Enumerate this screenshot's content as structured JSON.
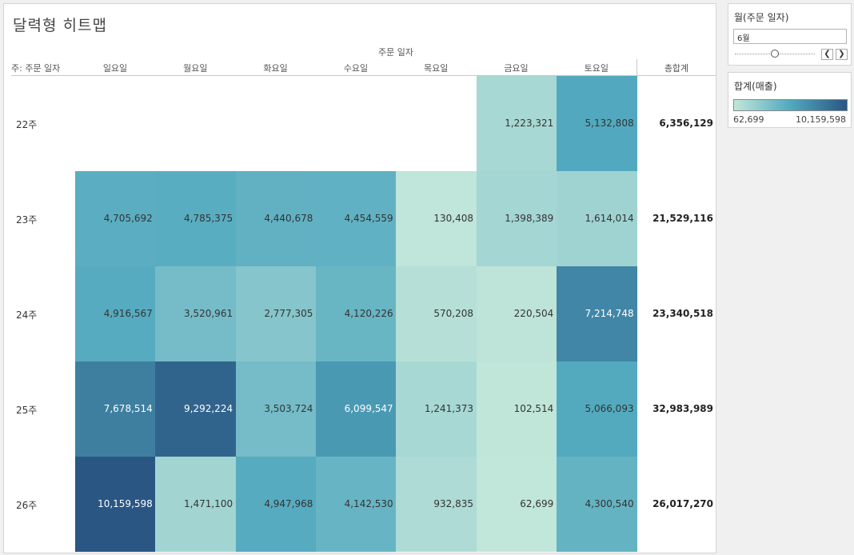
{
  "title": "달력형 히트맵",
  "column_super_header": "주문 일자",
  "row_header": "주: 주문 일자",
  "total_header": "총합계",
  "filter": {
    "title": "월(주문 일자)",
    "value": "6월",
    "prev_icon": "chevron-left-icon",
    "next_icon": "chevron-right-icon",
    "slider_position_fraction": 0.5
  },
  "legend": {
    "title": "합계(매출)",
    "min_label": "62,699",
    "max_label": "10,159,598",
    "min": 62699,
    "max": 10159598,
    "colors": [
      "#c1e6da",
      "#52a9bf",
      "#2a5683"
    ]
  },
  "chart_data": {
    "type": "heatmap",
    "title": "달력형 히트맵",
    "x_title": "주문 일자",
    "y_title": "주: 주문 일자",
    "columns": [
      "일요일",
      "월요일",
      "화요일",
      "수요일",
      "목요일",
      "금요일",
      "토요일"
    ],
    "rows": [
      "22주",
      "23주",
      "24주",
      "25주",
      "26주"
    ],
    "values": [
      [
        null,
        null,
        null,
        null,
        null,
        1223321,
        5132808
      ],
      [
        4705692,
        4785375,
        4440678,
        4454559,
        130408,
        1398389,
        1614014
      ],
      [
        4916567,
        3520961,
        2777305,
        4120226,
        570208,
        220504,
        7214748
      ],
      [
        7678514,
        9292224,
        3503724,
        6099547,
        1241373,
        102514,
        5066093
      ],
      [
        10159598,
        1471100,
        4947968,
        4142530,
        932835,
        62699,
        4300540
      ]
    ],
    "row_totals": [
      6356129,
      21529116,
      23340518,
      32983989,
      26017270
    ],
    "value_label": "합계(매출)"
  }
}
